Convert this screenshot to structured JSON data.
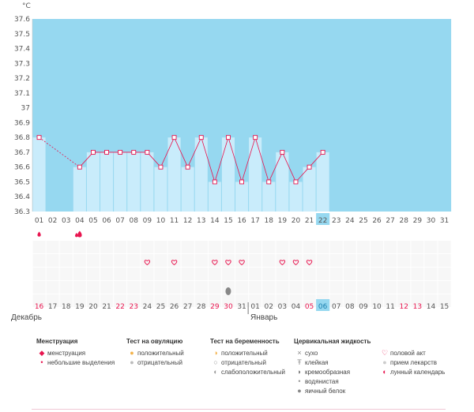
{
  "unit_label": "°C",
  "months": [
    "Декабрь",
    "Январь"
  ],
  "colors": {
    "phase": "#96d8f0",
    "bar": "#c9ecfb",
    "line": "#e8154f",
    "red": "#e8154f",
    "heart": "#e8154f"
  },
  "chart_data": {
    "type": "line",
    "ylim": [
      36.3,
      37.6
    ],
    "y_ticks": [
      "36.3",
      "36.4",
      "36.5",
      "36.6",
      "36.7",
      "36.8",
      "36.9",
      "37",
      "37.1",
      "37.2",
      "37.3",
      "37.4",
      "37.5",
      "37.6"
    ],
    "x_top": [
      "01",
      "02",
      "03",
      "04",
      "05",
      "06",
      "07",
      "08",
      "09",
      "10",
      "11",
      "12",
      "13",
      "14",
      "15",
      "16",
      "17",
      "18",
      "19",
      "20",
      "21",
      "22",
      "23",
      "24",
      "25",
      "26",
      "27",
      "28",
      "29",
      "30",
      "31"
    ],
    "x_bottom": [
      "16",
      "17",
      "18",
      "19",
      "20",
      "21",
      "22",
      "23",
      "24",
      "25",
      "26",
      "27",
      "28",
      "29",
      "30",
      "31",
      "01",
      "02",
      "03",
      "04",
      "05",
      "06",
      "07",
      "08",
      "09",
      "10",
      "11",
      "12",
      "13",
      "14",
      "15"
    ],
    "red_bottom": [
      "16",
      "22",
      "23",
      "29",
      "30",
      "05",
      "12",
      "13"
    ],
    "selected": "22",
    "series": [
      {
        "values": [
          36.8,
          null,
          null,
          36.6,
          36.7,
          36.7,
          36.7,
          36.7,
          36.7,
          36.6,
          36.8,
          36.6,
          36.8,
          36.5,
          36.8,
          36.5,
          36.8,
          36.5,
          36.7,
          36.5,
          36.6,
          36.7
        ]
      }
    ]
  },
  "markers": {
    "menstruation_days": [
      "01",
      "04"
    ],
    "heart_days": [
      "09",
      "11",
      "14",
      "15",
      "16",
      "19",
      "20",
      "21"
    ],
    "cervical_days": [
      "15"
    ]
  },
  "legend": [
    {
      "title": "Менструация",
      "items": [
        {
          "icon": "drop-large-icon",
          "label": "менструация"
        },
        {
          "icon": "drop-small-icon",
          "label": "небольшие выделения"
        }
      ]
    },
    {
      "title": "Тест на овуляцию",
      "items": [
        {
          "icon": "ovulation-positive-icon",
          "label": "положительный"
        },
        {
          "icon": "ovulation-negative-icon",
          "label": "отрицательный"
        }
      ]
    },
    {
      "title": "Тест на беременность",
      "items": [
        {
          "icon": "pregnancy-positive-icon",
          "label": "положительный"
        },
        {
          "icon": "pregnancy-negative-icon",
          "label": "отрицательный"
        },
        {
          "icon": "pregnancy-weak-icon",
          "label": "слабоположительный"
        }
      ]
    },
    {
      "title": "Цервикальная жидкость",
      "items": [
        {
          "icon": "dry-icon",
          "label": "сухо"
        },
        {
          "icon": "sticky-icon",
          "label": "клейкая"
        },
        {
          "icon": "creamy-icon",
          "label": "кремообразная"
        },
        {
          "icon": "watery-icon",
          "label": "водянистая"
        },
        {
          "icon": "eggwhite-icon",
          "label": "яичный белок"
        }
      ]
    },
    {
      "title": "",
      "items": [
        {
          "icon": "heart-icon",
          "label": "половой акт"
        },
        {
          "icon": "pill-icon",
          "label": "прием лекарств"
        },
        {
          "icon": "moon-icon",
          "label": "лунный календарь"
        }
      ]
    }
  ]
}
